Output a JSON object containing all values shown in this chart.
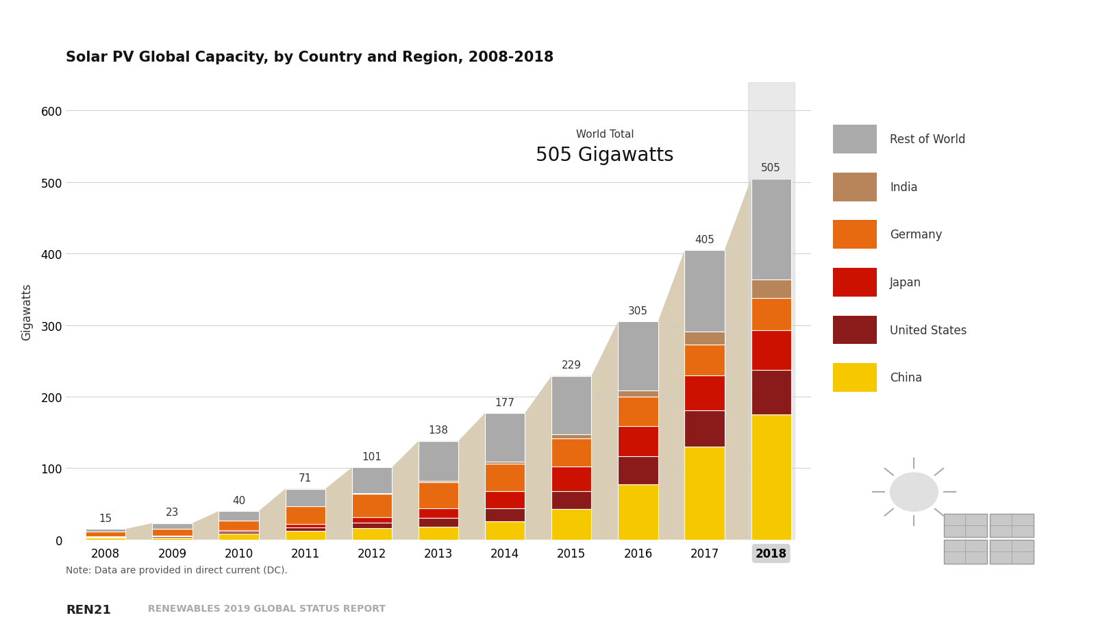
{
  "title": "Solar PV Global Capacity, by Country and Region, 2008-2018",
  "ylabel": "Gigawatts",
  "note": "Note: Data are provided in direct current (DC).",
  "footer": "REN21    RENEWABLES 2019 GLOBAL STATUS REPORT",
  "years": [
    2008,
    2009,
    2010,
    2011,
    2012,
    2013,
    2014,
    2015,
    2016,
    2017,
    2018
  ],
  "totals": [
    15,
    23,
    40,
    71,
    101,
    138,
    177,
    229,
    305,
    405,
    505
  ],
  "world_total_label": "World Total",
  "world_total_value": "505 Gigawatts",
  "segments": {
    "China": [
      3,
      3,
      8,
      12,
      16,
      18,
      26,
      43,
      77,
      130,
      175
    ],
    "United States": [
      1,
      2,
      3,
      5,
      8,
      12,
      18,
      25,
      40,
      51,
      62
    ],
    "Japan": [
      1,
      1,
      2,
      5,
      7,
      14,
      24,
      34,
      42,
      49,
      56
    ],
    "Germany": [
      6,
      9,
      14,
      25,
      33,
      36,
      38,
      40,
      41,
      43,
      45
    ],
    "India": [
      0,
      0,
      0,
      0,
      1,
      2,
      3,
      5,
      9,
      18,
      26
    ],
    "Rest of World": [
      4,
      8,
      13,
      24,
      36,
      56,
      68,
      82,
      96,
      114,
      141
    ]
  },
  "colors": {
    "China": "#F5C800",
    "United States": "#8B1A1A",
    "Japan": "#CC1100",
    "Germany": "#E86A10",
    "India": "#B8845A",
    "Rest of World": "#AAAAAA"
  },
  "bg_area_color": "#D9CDB5",
  "ylim": [
    0,
    640
  ],
  "yticks": [
    0,
    100,
    200,
    300,
    400,
    500,
    600
  ],
  "bar_width": 0.6,
  "highlight_2018": true,
  "highlight_color": "#D4D4D4"
}
